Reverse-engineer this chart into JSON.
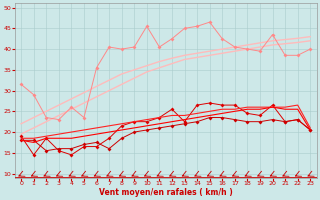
{
  "xlabel": "Vent moyen/en rafales ( km/h )",
  "xlim": [
    -0.5,
    23.5
  ],
  "ylim": [
    9,
    51
  ],
  "yticks": [
    10,
    15,
    20,
    25,
    30,
    35,
    40,
    45,
    50
  ],
  "xticks": [
    0,
    1,
    2,
    3,
    4,
    5,
    6,
    7,
    8,
    9,
    10,
    11,
    12,
    13,
    14,
    15,
    16,
    17,
    18,
    19,
    20,
    21,
    22,
    23
  ],
  "bg_color": "#cde8e8",
  "grid_color": "#aacccc",
  "line_light1_color": "#ffbbbb",
  "line_light2_color": "#ffbbbb",
  "line_med_color": "#ff8888",
  "line_dark1_color": "#dd0000",
  "line_dark2_color": "#ff2222",
  "line_dark3_color": "#cc0000",
  "line_dark4_color": "#ff0000",
  "arrow_color": "#cc0000",
  "tick_color": "#cc0000",
  "label_color": "#cc0000",
  "line_light1_y": [
    19.5,
    21.0,
    22.5,
    24.0,
    25.5,
    27.0,
    28.5,
    30.0,
    31.5,
    33.0,
    34.5,
    35.5,
    36.5,
    37.5,
    38.0,
    38.5,
    39.0,
    39.5,
    40.0,
    40.5,
    41.0,
    41.3,
    41.6,
    42.0
  ],
  "line_light2_y": [
    22.0,
    23.5,
    25.0,
    26.5,
    28.0,
    29.5,
    31.0,
    32.5,
    34.0,
    35.0,
    36.0,
    37.0,
    37.8,
    38.5,
    39.0,
    39.5,
    40.0,
    40.5,
    41.0,
    41.5,
    42.0,
    42.3,
    42.6,
    43.0
  ],
  "line_med_y": [
    31.5,
    29.0,
    23.5,
    23.0,
    26.0,
    23.5,
    35.5,
    40.5,
    40.0,
    40.5,
    45.5,
    40.5,
    42.5,
    45.0,
    45.5,
    46.5,
    42.5,
    40.5,
    40.0,
    39.5,
    43.5,
    38.5,
    38.5,
    40.0
  ],
  "line_dark1_y": [
    19.0,
    14.5,
    18.5,
    15.5,
    14.5,
    16.5,
    16.5,
    18.5,
    21.5,
    22.5,
    22.5,
    23.5,
    25.5,
    22.5,
    26.5,
    27.0,
    26.5,
    26.5,
    24.5,
    24.0,
    26.5,
    22.5,
    23.0,
    20.5
  ],
  "line_dark2_y": [
    18.5,
    18.5,
    19.0,
    19.5,
    20.0,
    20.5,
    21.0,
    21.5,
    22.0,
    22.5,
    23.0,
    23.5,
    24.0,
    24.0,
    24.5,
    25.0,
    25.5,
    25.5,
    26.0,
    26.0,
    26.0,
    26.0,
    26.5,
    21.0
  ],
  "line_dark3_y": [
    18.0,
    18.0,
    15.5,
    16.0,
    16.0,
    17.0,
    17.5,
    16.0,
    18.5,
    20.0,
    20.5,
    21.0,
    21.5,
    22.0,
    22.5,
    23.5,
    23.5,
    23.0,
    22.5,
    22.5,
    23.0,
    22.5,
    23.0,
    20.5
  ],
  "line_dark4_y": [
    18.0,
    17.5,
    18.5,
    18.5,
    18.5,
    19.0,
    19.5,
    20.0,
    20.5,
    21.0,
    21.5,
    22.0,
    22.5,
    23.0,
    23.5,
    24.0,
    24.5,
    25.0,
    25.5,
    25.5,
    26.0,
    25.5,
    25.5,
    20.5
  ]
}
